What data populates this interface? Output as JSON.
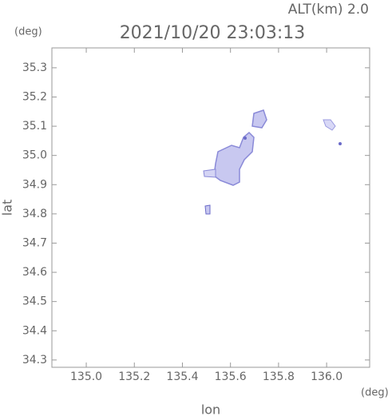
{
  "chart_data": {
    "type": "map",
    "title": "2021/10/20 23:03:13",
    "altitude_label": "ALT(km)  2.0",
    "y_unit": "(deg)",
    "x_unit": "(deg)",
    "xlabel": "lon",
    "ylabel": "lat",
    "xlim": [
      134.857,
      136.179
    ],
    "ylim": [
      34.275,
      35.368
    ],
    "xticks": [
      {
        "value": 135,
        "label": "135.0"
      },
      {
        "value": 135.2,
        "label": "135.2"
      },
      {
        "value": 135.4,
        "label": "135.4"
      },
      {
        "value": 135.6,
        "label": "135.6"
      },
      {
        "value": 135.8,
        "label": "135.8"
      },
      {
        "value": 136,
        "label": "136.0"
      }
    ],
    "yticks": [
      34.3,
      34.4,
      34.5,
      34.6,
      34.7,
      34.8,
      34.9,
      {
        "value": 35,
        "label": "35.0"
      },
      35.1,
      35.2,
      35.3
    ]
  }
}
